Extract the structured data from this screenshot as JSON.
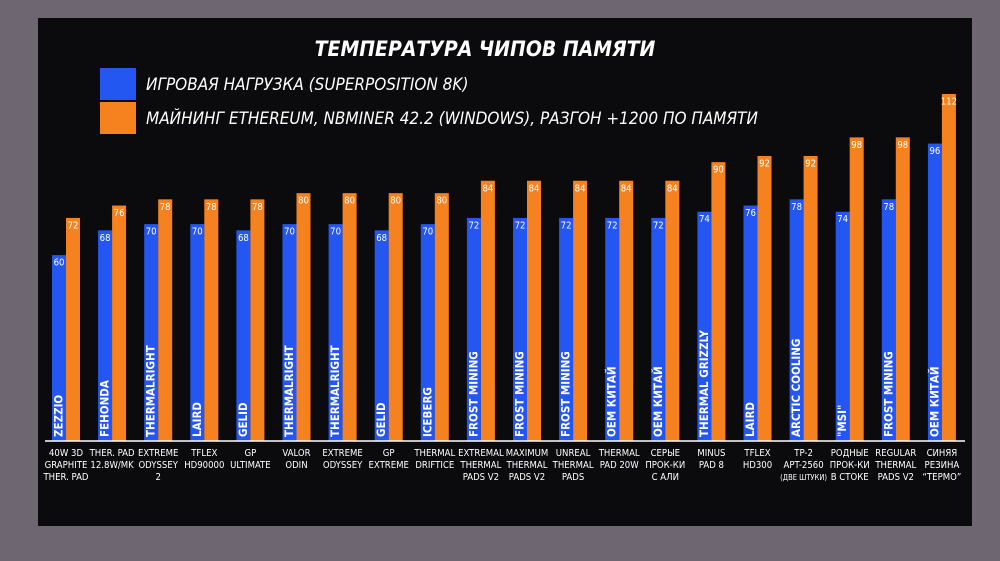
{
  "chart_data": {
    "type": "bar",
    "title": "ТЕМПЕРАТУРА ЧИПОВ ПАМЯТИ",
    "categories": [
      "40W 3D\nGRAPHITE\nTHER. PAD",
      "THER. PAD\n12.8W/MK",
      "EXTREME\nODYSSEY\n2",
      "TFLEX\nHD90000",
      "GP\nULTIMATE",
      "VALOR\nODIN",
      "EXTREME\nODYSSEY",
      "GP\nEXTREME",
      "THERMAL\nDRIFTICE",
      "EXTREMAL\nTHERMAL\nPADS V2",
      "MAXIMUM\nTHERMAL\nPADS V2",
      "UNREAL\nTHERMAL\nPADS",
      "THERMAL\nPAD 20W",
      "СЕРЫЕ\nПРОК-КИ\nС АЛИ",
      "MINUS\nPAD 8",
      "TFLEX\nHD300",
      "TP-2\nAPT-2560\n(ДВЕ ШТУКИ)",
      "РОДНЫЕ\nПРОК-КИ\nВ СТОКЕ",
      "REGULAR\nTHERMAL\nPADS V2",
      "СИНЯЯ\nРЕЗИНА\n“ТЕРМО”"
    ],
    "brands": [
      "ZEZZIO",
      "FEHONDA",
      "THERMALRIGHT",
      "LAIRD",
      "GELID",
      "THERMALRIGHT",
      "THERMALRIGHT",
      "GELID",
      "ICEBERG",
      "FROST MINING",
      "FROST MINING",
      "FROST MINING",
      "OEM КИТАЙ",
      "OEM КИТАЙ",
      "THERMAL GRIZZLY",
      "LAIRD",
      "ARCTIC COOLING",
      "\"MSI\"",
      "FROST MINING",
      "OEM КИТАЙ"
    ],
    "series": [
      {
        "name": "ИГРОВАЯ НАГРУЗКА (SUPERPOSITION 8K)",
        "color": "#2457f2",
        "values": [
          60,
          68,
          70,
          70,
          68,
          70,
          70,
          68,
          70,
          72,
          72,
          72,
          72,
          72,
          74,
          76,
          78,
          74,
          78,
          96
        ]
      },
      {
        "name": "МАЙНИНГ ETHEREUM, NBMINER 42.2 (WINDOWS), РАЗГОН +1200 ПО ПАМЯТИ",
        "color": "#f5821f",
        "values": [
          72,
          76,
          78,
          78,
          78,
          80,
          80,
          80,
          80,
          84,
          84,
          84,
          84,
          84,
          90,
          92,
          92,
          98,
          98,
          112
        ]
      }
    ]
  }
}
